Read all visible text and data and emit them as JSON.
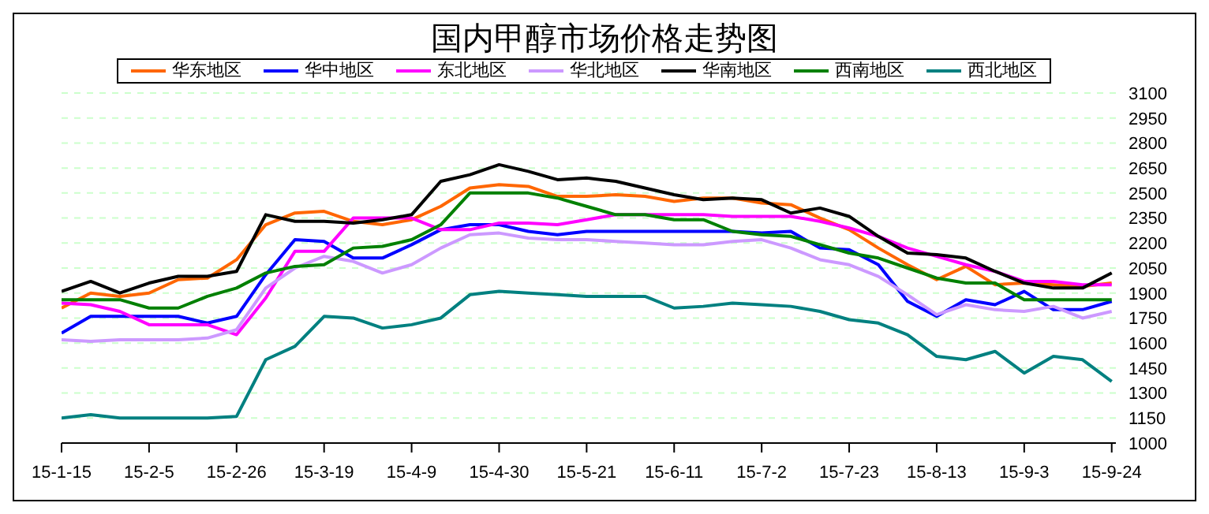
{
  "chart_data": {
    "type": "line",
    "title": "国内甲醇市场价格走势图",
    "x": [
      "--01-15",
      "--01-22",
      "--01-29",
      "--02-05",
      "--02-12",
      "--02-19",
      "--02-26",
      "--03-05",
      "--03-12",
      "--03-19",
      "--03-26",
      "--04-02",
      "--04-09",
      "--04-16",
      "--04-23",
      "--04-30",
      "--05-07",
      "--05-14",
      "--05-21",
      "--05-28",
      "--06-04",
      "--06-11",
      "--06-18",
      "--06-25",
      "--07-02",
      "--07-09",
      "--07-16",
      "--07-23",
      "--07-30",
      "--08-06",
      "--08-13",
      "--08-20",
      "--08-27",
      "--09-03",
      "--09-10",
      "--09-17",
      "--09-24"
    ],
    "series": [
      {
        "name": "华东地区",
        "color": "#ff6600",
        "values": [
          1810,
          1900,
          1880,
          1900,
          1980,
          1990,
          2100,
          2310,
          2380,
          2390,
          2330,
          2310,
          2340,
          2420,
          2530,
          2550,
          2540,
          2480,
          2480,
          2490,
          2480,
          2450,
          2470,
          2470,
          2440,
          2430,
          2350,
          2280,
          2170,
          2070,
          1980,
          2060,
          1950,
          1960,
          1950,
          1940,
          1960
        ]
      },
      {
        "name": "华中地区",
        "color": "#0000ff",
        "values": [
          1660,
          1760,
          1760,
          1760,
          1760,
          1720,
          1760,
          2010,
          2220,
          2210,
          2110,
          2110,
          2190,
          2280,
          2310,
          2310,
          2270,
          2250,
          2270,
          2270,
          2270,
          2270,
          2270,
          2270,
          2260,
          2270,
          2170,
          2160,
          2070,
          1850,
          1760,
          1860,
          1830,
          1910,
          1800,
          1800,
          1850
        ]
      },
      {
        "name": "东北地区",
        "color": "#ff00ff",
        "values": [
          1840,
          1830,
          1790,
          1710,
          1710,
          1710,
          1650,
          1870,
          2150,
          2150,
          2350,
          2350,
          2350,
          2280,
          2280,
          2320,
          2320,
          2310,
          2340,
          2370,
          2370,
          2370,
          2370,
          2360,
          2360,
          2360,
          2330,
          2290,
          2240,
          2170,
          2120,
          2070,
          2030,
          1970,
          1970,
          1950,
          1950
        ]
      },
      {
        "name": "华北地区",
        "color": "#cc99ff",
        "values": [
          1620,
          1610,
          1620,
          1620,
          1620,
          1630,
          1680,
          1930,
          2050,
          2120,
          2090,
          2020,
          2070,
          2170,
          2250,
          2260,
          2230,
          2220,
          2220,
          2210,
          2200,
          2190,
          2190,
          2210,
          2220,
          2170,
          2100,
          2070,
          2000,
          1890,
          1770,
          1830,
          1800,
          1790,
          1820,
          1750,
          1790
        ]
      },
      {
        "name": "华南地区",
        "color": "#000000",
        "values": [
          1910,
          1970,
          1900,
          1960,
          2000,
          2000,
          2030,
          2370,
          2330,
          2330,
          2320,
          2340,
          2370,
          2570,
          2610,
          2670,
          2630,
          2580,
          2590,
          2570,
          2530,
          2490,
          2460,
          2470,
          2460,
          2380,
          2410,
          2360,
          2240,
          2140,
          2130,
          2110,
          2030,
          1960,
          1930,
          1930,
          2020
        ]
      },
      {
        "name": "西南地区",
        "color": "#008000",
        "values": [
          1860,
          1860,
          1860,
          1810,
          1810,
          1880,
          1930,
          2020,
          2060,
          2070,
          2170,
          2180,
          2220,
          2310,
          2500,
          2500,
          2500,
          2470,
          2420,
          2370,
          2370,
          2340,
          2340,
          2270,
          2250,
          2240,
          2190,
          2140,
          2110,
          2050,
          1990,
          1960,
          1960,
          1860,
          1860,
          1860,
          1860
        ]
      },
      {
        "name": "西北地区",
        "color": "#008080",
        "values": [
          1150,
          1170,
          1150,
          1150,
          1150,
          1150,
          1160,
          1500,
          1580,
          1760,
          1750,
          1690,
          1710,
          1750,
          1890,
          1910,
          1900,
          1890,
          1880,
          1880,
          1880,
          1810,
          1820,
          1840,
          1830,
          1820,
          1790,
          1740,
          1720,
          1650,
          1520,
          1500,
          1550,
          1420,
          1520,
          1500,
          1370
        ]
      }
    ],
    "xlim": [
      "--01-15",
      "--09-25"
    ],
    "xticks": [
      {
        "value": "--01-15",
        "label": "15-1-15"
      },
      {
        "value": "--02-05",
        "label": "15-2-5"
      },
      {
        "value": "--02-26",
        "label": "15-2-26"
      },
      {
        "value": "--03-19",
        "label": "15-3-19"
      },
      {
        "value": "--04-09",
        "label": "15-4-9"
      },
      {
        "value": "--04-30",
        "label": "15-4-30"
      },
      {
        "value": "--05-21",
        "label": "15-5-21"
      },
      {
        "value": "--06-11",
        "label": "15-6-11"
      },
      {
        "value": "--07-02",
        "label": "15-7-2"
      },
      {
        "value": "--07-23",
        "label": "15-7-23"
      },
      {
        "value": "--08-13",
        "label": "15-8-13"
      },
      {
        "value": "--09-03",
        "label": "15-9-3"
      },
      {
        "value": "--09-24",
        "label": "15-9-24"
      }
    ],
    "ylim": [
      1000,
      3100
    ],
    "yticks": [
      1000,
      1150,
      1300,
      1450,
      1600,
      1750,
      1900,
      2050,
      2200,
      2350,
      2500,
      2650,
      2800,
      2950,
      3100
    ],
    "grid": "y",
    "legend": "top",
    "marker": "none",
    "line_style": "solid"
  }
}
